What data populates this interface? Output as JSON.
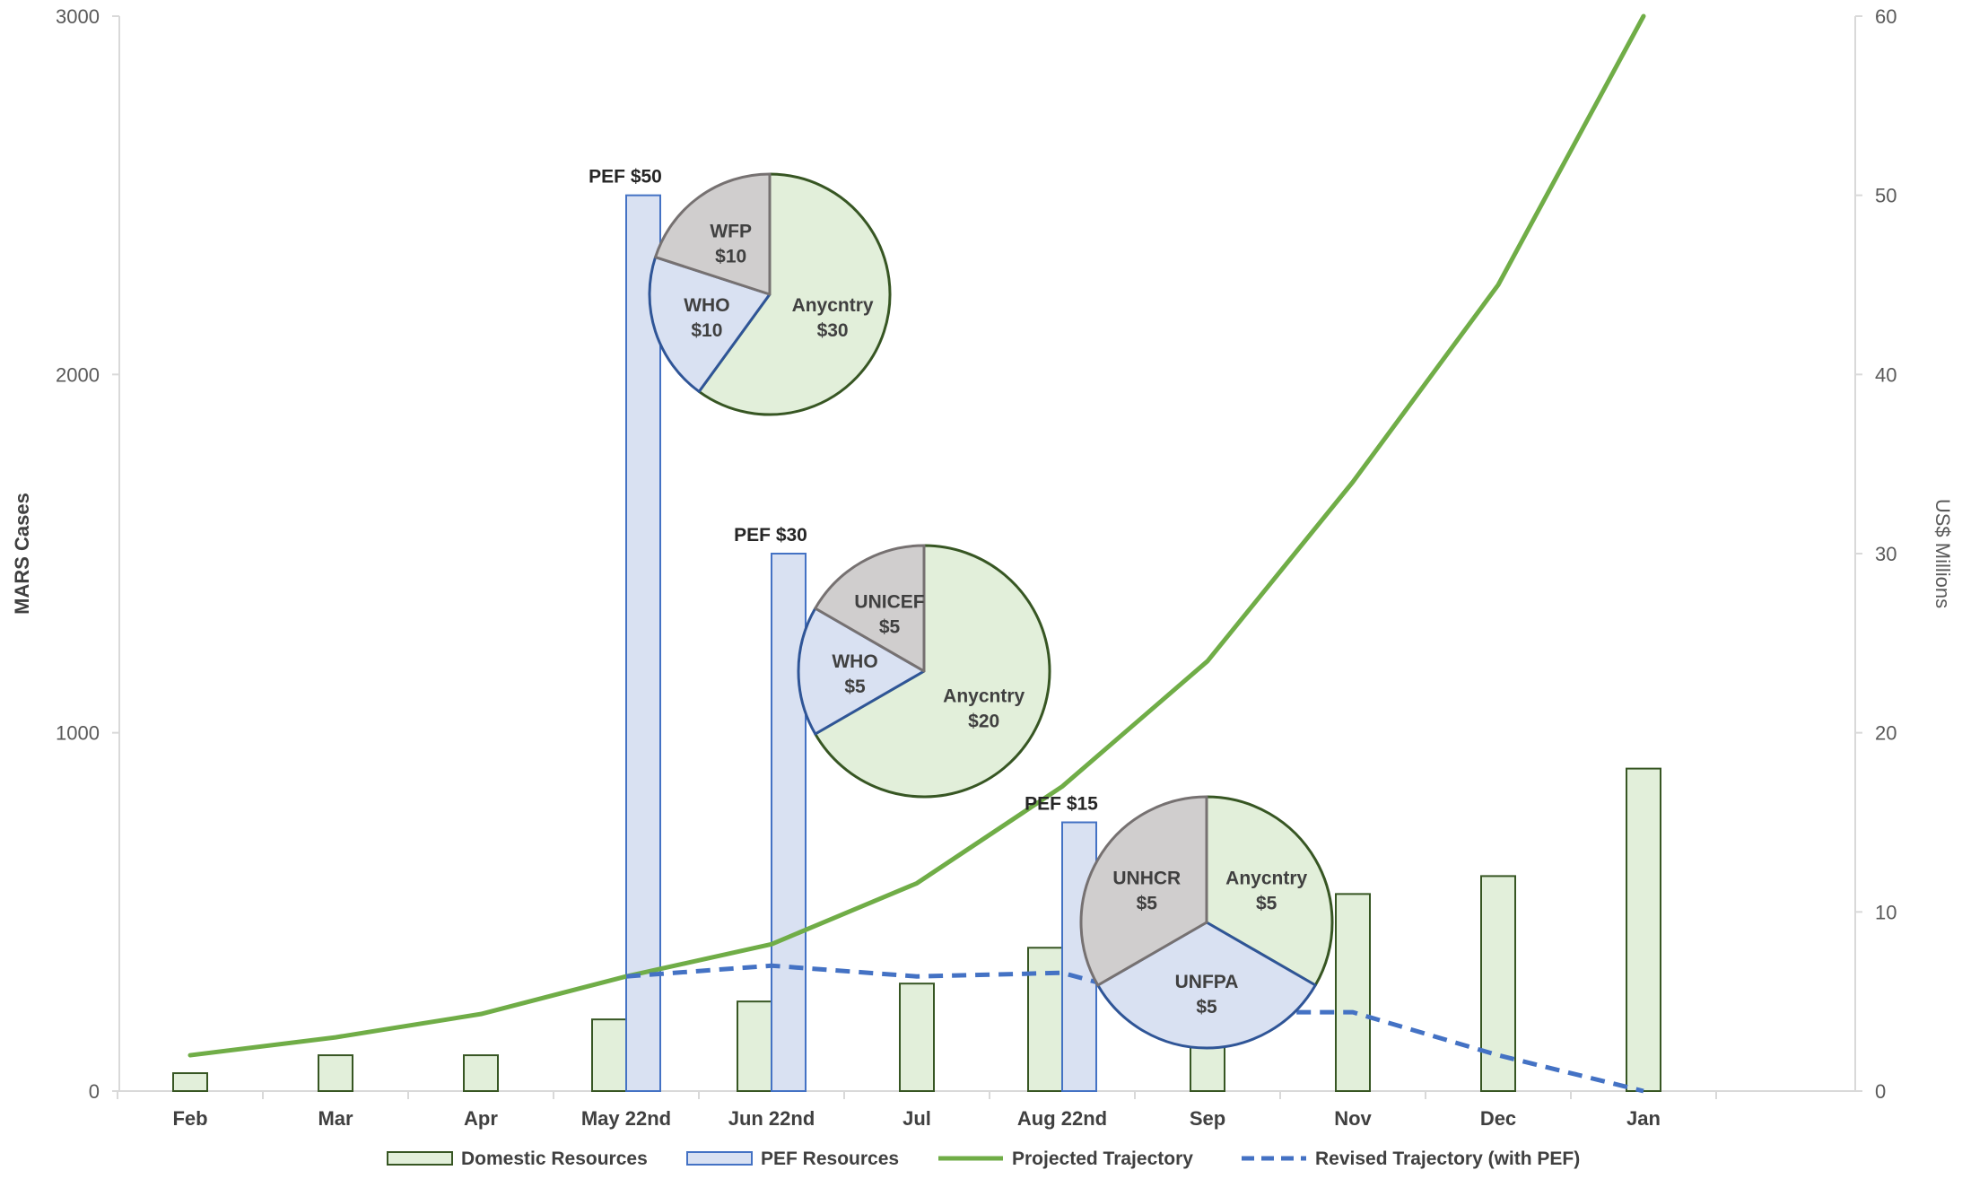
{
  "chart_data": {
    "type": "bar",
    "categories": [
      "Feb",
      "Mar",
      "Apr",
      "May 22nd",
      "Jun 22nd",
      "Jul",
      "Aug 22nd",
      "Sep",
      "Nov",
      "Dec",
      "Jan"
    ],
    "y_left": {
      "label": "MARS Cases",
      "ylim": [
        0,
        3000
      ],
      "ticks": [
        "0",
        "1000",
        "2000",
        "3000"
      ]
    },
    "y_right": {
      "label": "US$ Millions",
      "ylim": [
        0,
        60
      ],
      "ticks": [
        "0",
        "10",
        "20",
        "30",
        "40",
        "50",
        "60"
      ]
    },
    "series": [
      {
        "name": "Domestic Resources",
        "kind": "bar",
        "axis": "left",
        "fill": "#e2efda",
        "stroke": "#375623",
        "values": [
          50,
          100,
          100,
          200,
          250,
          300,
          400,
          150,
          550,
          600,
          900
        ]
      },
      {
        "name": "PEF Resources",
        "kind": "bar",
        "axis": "left",
        "fill": "#d9e1f2",
        "stroke": "#4472c4",
        "values": [
          null,
          null,
          null,
          2500,
          1500,
          null,
          750,
          null,
          null,
          null,
          null
        ],
        "labels": [
          "",
          "",
          "",
          "PEF $50",
          "PEF $30",
          "",
          "PEF $15",
          "",
          "",
          "",
          ""
        ]
      },
      {
        "name": "Projected Trajectory",
        "kind": "line",
        "axis": "left",
        "color": "#70ad47",
        "dashed": false,
        "values": [
          100,
          150,
          215,
          320,
          410,
          580,
          850,
          1200,
          1700,
          2250,
          3000
        ]
      },
      {
        "name": "Revised Trajectory (with PEF)",
        "kind": "line",
        "axis": "left",
        "color": "#4472c4",
        "dashed": true,
        "values": [
          null,
          null,
          null,
          320,
          350,
          320,
          330,
          220,
          220,
          100,
          0
        ]
      }
    ],
    "pies": [
      {
        "category": "May 22nd",
        "slices": [
          {
            "name": "Anycntry",
            "amount": "$30",
            "value": 30,
            "group": "anycntry"
          },
          {
            "name": "WHO",
            "amount": "$10",
            "value": 10,
            "group": "who"
          },
          {
            "name": "WFP",
            "amount": "$10",
            "value": 10,
            "group": "other"
          }
        ]
      },
      {
        "category": "Jun 22nd",
        "slices": [
          {
            "name": "Anycntry",
            "amount": "$20",
            "value": 20,
            "group": "anycntry"
          },
          {
            "name": "WHO",
            "amount": "$5",
            "value": 5,
            "group": "who"
          },
          {
            "name": "UNICEF",
            "amount": "$5",
            "value": 5,
            "group": "other"
          }
        ]
      },
      {
        "category": "Aug 22nd",
        "slices": [
          {
            "name": "Anycntry",
            "amount": "$5",
            "value": 5,
            "group": "anycntry"
          },
          {
            "name": "UNFPA",
            "amount": "$5",
            "value": 5,
            "group": "who"
          },
          {
            "name": "UNHCR",
            "amount": "$5",
            "value": 5,
            "group": "other"
          }
        ]
      }
    ],
    "pie_colors": {
      "anycntry": {
        "fill": "#e2efda",
        "stroke": "#375623"
      },
      "who": {
        "fill": "#d9e1f2",
        "stroke": "#2f5597"
      },
      "other": {
        "fill": "#d0cece",
        "stroke": "#767171"
      }
    },
    "legend": {
      "position": "bottom",
      "items": [
        {
          "label": "Domestic Resources",
          "kind": "box",
          "fill": "#e2efda",
          "stroke": "#375623"
        },
        {
          "label": "PEF Resources",
          "kind": "box",
          "fill": "#d9e1f2",
          "stroke": "#4472c4"
        },
        {
          "label": "Projected Trajectory",
          "kind": "line",
          "color": "#70ad47",
          "dashed": false
        },
        {
          "label": "Revised Trajectory (with PEF)",
          "kind": "line",
          "color": "#4472c4",
          "dashed": true
        }
      ]
    },
    "grid": false
  }
}
